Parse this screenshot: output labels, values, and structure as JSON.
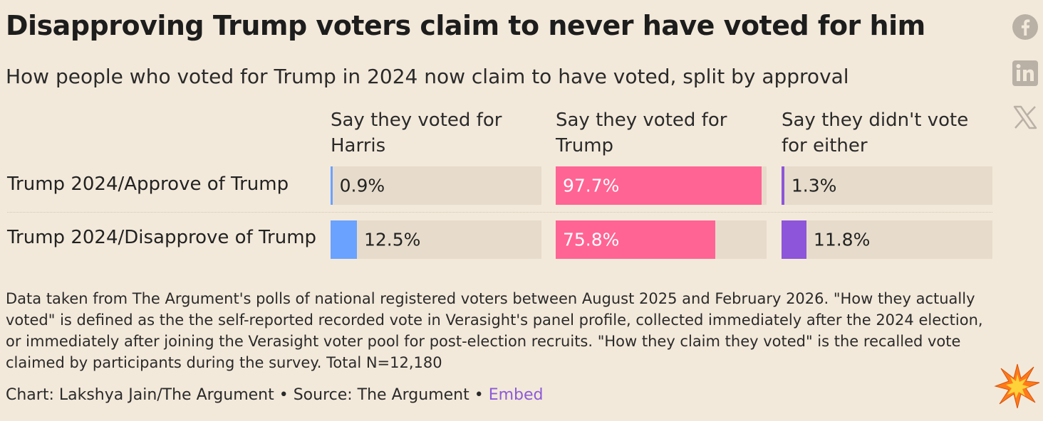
{
  "title": "Disapproving Trump voters claim to never have voted for him",
  "subtitle": "How people who voted for Trump in 2024 now claim to have voted, split by approval",
  "social": {
    "facebook_icon": "facebook-icon",
    "linkedin_icon": "linkedin-icon",
    "x_icon": "x-icon",
    "icon_color": "#b9b1a6"
  },
  "chart_data": {
    "type": "bar",
    "orientation": "horizontal",
    "value_format": "percent",
    "xlim": [
      0,
      100
    ],
    "categories": [
      "Trump 2024/Approve of Trump",
      "Trump 2024/Disapprove of Trump"
    ],
    "series": [
      {
        "name": "Say they voted for Harris",
        "color": "#6aa2ff",
        "values": [
          0.9,
          12.5
        ],
        "labels": [
          "0.9%",
          "12.5%"
        ]
      },
      {
        "name": "Say they voted for Trump",
        "color": "#ff6494",
        "values": [
          97.7,
          75.8
        ],
        "labels": [
          "97.7%",
          "75.8%"
        ]
      },
      {
        "name": "Say they didn't vote for either",
        "color": "#8d55d9",
        "values": [
          1.3,
          11.8
        ],
        "labels": [
          "1.3%",
          "11.8%"
        ]
      }
    ]
  },
  "footnote": "Data taken from The Argument's polls of national registered voters between August 2025 and February 2026. \"How they actually voted\" is defined as the the self-reported recorded vote in Verasight's panel profile, collected immediately after the 2024 election, or immediately after joining the Verasight voter pool for post-election recruits. \"How they claim they voted\" is the recalled vote claimed by participants during the survey. Total N=12,180",
  "credit": {
    "prefix": "Chart: Lakshya Jain/The Argument • Source: The Argument • ",
    "embed_label": "Embed"
  },
  "colors": {
    "background": "#f3e9da",
    "track": "#e7dccb",
    "embed_link": "#8c5ad8",
    "burst": "#ff7a1a"
  }
}
